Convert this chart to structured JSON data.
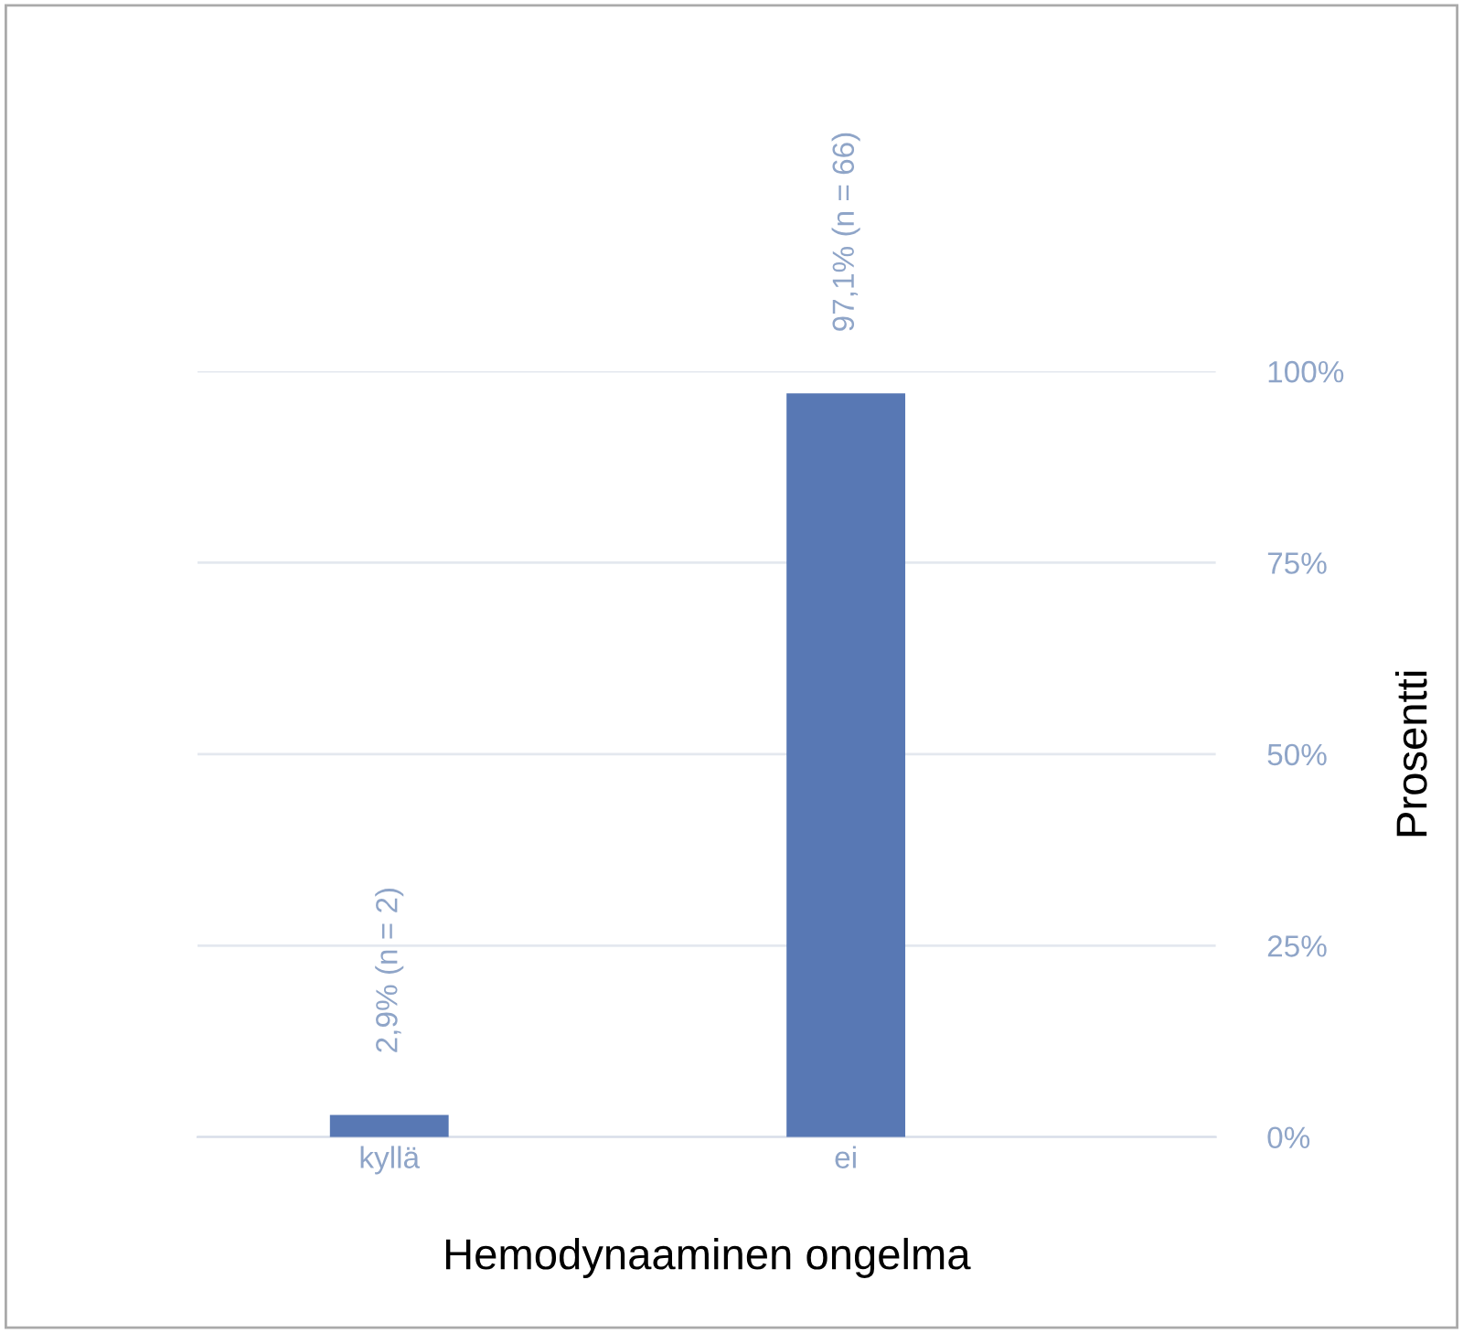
{
  "chart_data": {
    "type": "bar",
    "xlabel": "Hemodynaaminen ongelma",
    "ylabel": "Prosentti",
    "categories": [
      "kyllä",
      "ei"
    ],
    "values": [
      2.9,
      97.1
    ],
    "value_labels": [
      "2,9% (n = 2)",
      "97,1% (n = 66)"
    ],
    "color": "#5878b4",
    "ylim": [
      0,
      100
    ],
    "yticks": [
      {
        "value": 0,
        "label": "0%"
      },
      {
        "value": 25,
        "label": "25%"
      },
      {
        "value": 50,
        "label": "50%"
      },
      {
        "value": 75,
        "label": "75%"
      },
      {
        "value": 100,
        "label": "100%"
      }
    ],
    "grid": "y",
    "legend": false
  }
}
